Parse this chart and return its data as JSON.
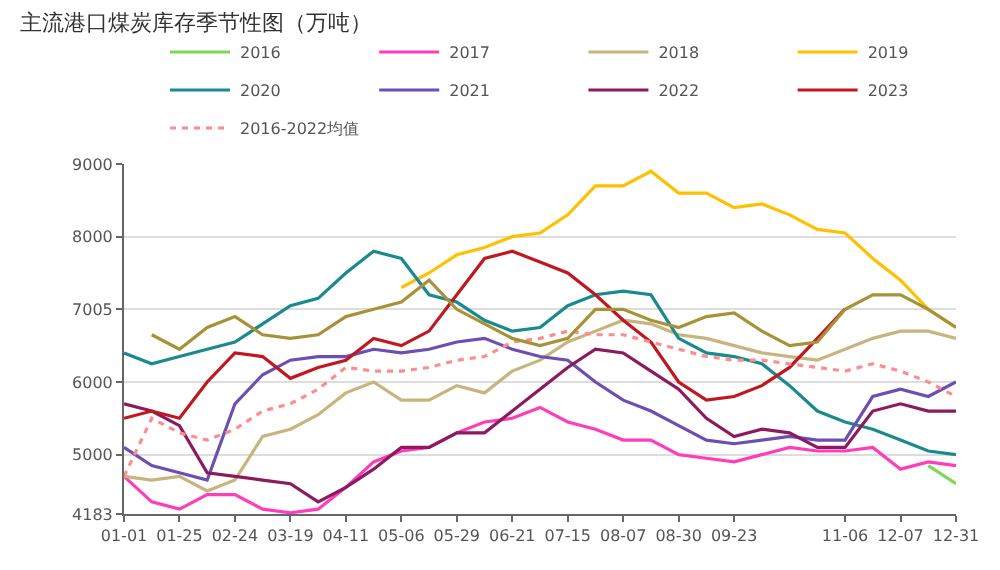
{
  "chart_data": {
    "type": "line",
    "title": "主流港口煤炭库存季节性图（万吨）",
    "categories": [
      "01-01",
      null,
      "01-25",
      null,
      "02-24",
      null,
      "03-19",
      null,
      "04-11",
      null,
      "05-06",
      null,
      "05-29",
      null,
      "06-21",
      null,
      "07-15",
      null,
      "08-07",
      null,
      "08-30",
      null,
      "09-23",
      null,
      null,
      null,
      "11-06",
      null,
      "12-07",
      null,
      "12-31"
    ],
    "ylim": [
      4183,
      9000
    ],
    "yticks": [
      4183,
      5000,
      6000,
      7005,
      8000,
      9000
    ],
    "grid": "y",
    "legend": "top",
    "series": [
      {
        "name": "2016",
        "color": "#7ed957",
        "values": [
          null,
          null,
          null,
          null,
          null,
          null,
          null,
          null,
          null,
          null,
          null,
          null,
          null,
          null,
          null,
          null,
          null,
          null,
          null,
          null,
          null,
          null,
          null,
          null,
          null,
          null,
          null,
          null,
          null,
          4850,
          4600
        ]
      },
      {
        "name": "2017",
        "color": "#ff3dbb",
        "values": [
          4700,
          4350,
          4250,
          4450,
          4450,
          4250,
          4200,
          4250,
          4550,
          4900,
          5050,
          5100,
          5300,
          5450,
          5500,
          5650,
          5450,
          5350,
          5200,
          5200,
          5000,
          4950,
          4900,
          5000,
          5100,
          5050,
          5050,
          5100,
          4800,
          4900,
          4850
        ]
      },
      {
        "name": "2018",
        "color": "#c8b47e",
        "values": [
          4700,
          4650,
          4700,
          4500,
          4650,
          5250,
          5350,
          5550,
          5850,
          6000,
          5750,
          5750,
          5950,
          5850,
          6150,
          6300,
          6550,
          6700,
          6850,
          6800,
          6650,
          6600,
          6500,
          6400,
          6350,
          6300,
          6450,
          6600,
          6700,
          6700,
          6600
        ]
      },
      {
        "name": "2019",
        "color": "#ffc000",
        "values": [
          null,
          null,
          null,
          null,
          null,
          null,
          null,
          null,
          null,
          null,
          7300,
          7500,
          7750,
          7850,
          8000,
          8050,
          8300,
          8700,
          8700,
          8900,
          8600,
          8600,
          8400,
          8450,
          8300,
          8100,
          8050,
          7700,
          7400,
          7000,
          6750
        ]
      },
      {
        "name": "2020",
        "color": "#1a8a8f",
        "values": [
          6400,
          6250,
          6350,
          6450,
          6550,
          6800,
          7050,
          7150,
          7500,
          7800,
          7700,
          7200,
          7100,
          6850,
          6700,
          6750,
          7050,
          7200,
          7250,
          7200,
          6600,
          6400,
          6350,
          6250,
          5950,
          5600,
          5450,
          5350,
          5200,
          5050,
          5000
        ]
      },
      {
        "name": "2021",
        "color": "#6b4fb3",
        "values": [
          5100,
          4850,
          4750,
          4650,
          5700,
          6100,
          6300,
          6350,
          6350,
          6450,
          6400,
          6450,
          6550,
          6600,
          6450,
          6350,
          6300,
          6000,
          5750,
          5600,
          5400,
          5200,
          5150,
          5200,
          5250,
          5200,
          5200,
          5800,
          5900,
          5800,
          6000
        ]
      },
      {
        "name": "2022",
        "color": "#8b1a5f",
        "values": [
          5700,
          5600,
          5400,
          4750,
          4700,
          4650,
          4600,
          4350,
          4550,
          4800,
          5100,
          5100,
          5300,
          5300,
          5600,
          5900,
          6200,
          6450,
          6400,
          6150,
          5900,
          5500,
          5250,
          5350,
          5300,
          5100,
          5100,
          5600,
          5700,
          5600,
          5600
        ]
      },
      {
        "name": "2023",
        "color": "#c0181e",
        "values": [
          5500,
          5600,
          5500,
          6000,
          6400,
          6350,
          6050,
          6200,
          6300,
          6600,
          6500,
          6700,
          7200,
          7700,
          7800,
          7650,
          7500,
          7200,
          6850,
          6550,
          6000,
          5750,
          5800,
          5950,
          6200,
          6600,
          7005,
          null,
          null,
          null,
          null
        ]
      },
      {
        "name": "2016-2022均值",
        "color": "#ff8c8c",
        "line_style": "dotted",
        "values": [
          4700,
          5500,
          5300,
          5200,
          5350,
          5600,
          5700,
          5900,
          6200,
          6150,
          6150,
          6200,
          6300,
          6350,
          6550,
          6600,
          6700,
          6650,
          6650,
          6550,
          6450,
          6350,
          6300,
          6300,
          6250,
          6200,
          6150,
          6250,
          6150,
          6000,
          5800
        ]
      },
      {
        "color": "#a89238",
        "values": [
          null,
          6650,
          6450,
          6750,
          6900,
          6650,
          6600,
          6650,
          6900,
          7000,
          7100,
          7400,
          7000,
          6800,
          6600,
          6500,
          6600,
          7000,
          7000,
          6850,
          6750,
          6900,
          6950,
          6700,
          6500,
          6550,
          7000,
          7200,
          7200,
          7000,
          6750
        ]
      }
    ]
  }
}
